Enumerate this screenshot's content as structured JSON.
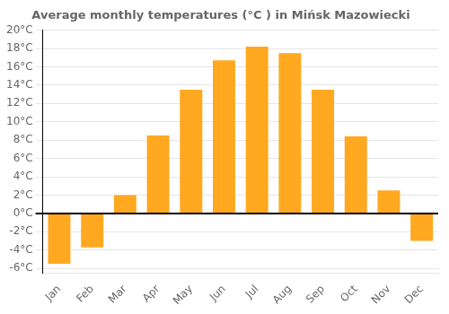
{
  "chart_data": {
    "type": "bar",
    "title": "Average monthly temperatures (°C ) in Mińsk Mazowiecki",
    "categories": [
      "Jan",
      "Feb",
      "Mar",
      "Apr",
      "May",
      "Jun",
      "Jul",
      "Aug",
      "Sep",
      "Oct",
      "Nov",
      "Dec"
    ],
    "values": [
      -5.5,
      -3.7,
      2.0,
      8.5,
      13.5,
      16.7,
      18.2,
      17.5,
      13.5,
      8.4,
      2.5,
      -3.0
    ],
    "color": "#FFA820",
    "ylim": [
      -6.5,
      20.0
    ],
    "yticks": [
      {
        "value": -6,
        "label": "-6°C"
      },
      {
        "value": -4,
        "label": "-4°C"
      },
      {
        "value": -2,
        "label": "-2°C"
      },
      {
        "value": 0,
        "label": "0°C"
      },
      {
        "value": 2,
        "label": "2°C"
      },
      {
        "value": 4,
        "label": "4°C"
      },
      {
        "value": 6,
        "label": "6°C"
      },
      {
        "value": 8,
        "label": "8°C"
      },
      {
        "value": 10,
        "label": "10°C"
      },
      {
        "value": 12,
        "label": "12°C"
      },
      {
        "value": 14,
        "label": "14°C"
      },
      {
        "value": 16,
        "label": "16°C"
      },
      {
        "value": 18,
        "label": "18°C"
      },
      {
        "value": 20,
        "label": "20°C"
      }
    ],
    "grid": true
  }
}
